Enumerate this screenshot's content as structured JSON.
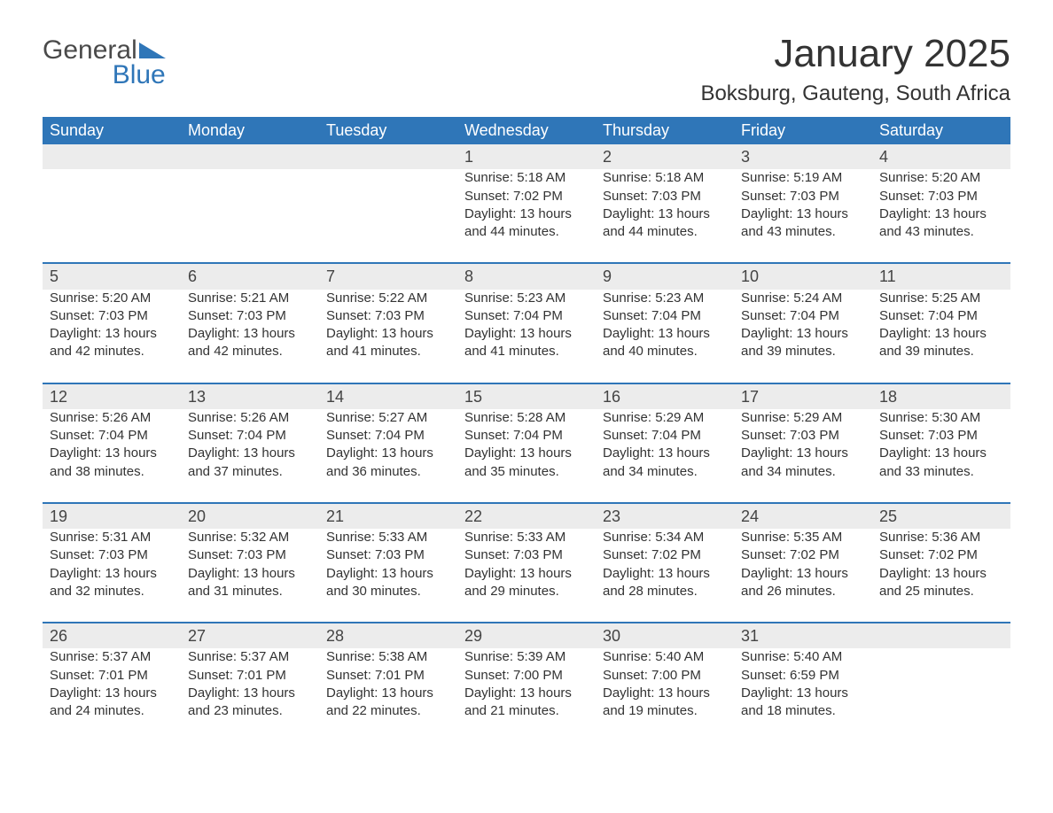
{
  "logo": {
    "word1": "General",
    "word2": "Blue"
  },
  "title": "January 2025",
  "location": "Boksburg, Gauteng, South Africa",
  "colors": {
    "header_bg": "#2f76b8",
    "header_text": "#ffffff",
    "daynum_bg": "#ececec",
    "row_border": "#2f76b8",
    "body_text": "#333333",
    "background": "#ffffff"
  },
  "fonts": {
    "title_size": 44,
    "location_size": 24,
    "header_size": 18,
    "cell_size": 15
  },
  "weekday_labels": [
    "Sunday",
    "Monday",
    "Tuesday",
    "Wednesday",
    "Thursday",
    "Friday",
    "Saturday"
  ],
  "weeks": [
    [
      null,
      null,
      null,
      {
        "day": "1",
        "sunrise": "Sunrise: 5:18 AM",
        "sunset": "Sunset: 7:02 PM",
        "daylight1": "Daylight: 13 hours",
        "daylight2": "and 44 minutes."
      },
      {
        "day": "2",
        "sunrise": "Sunrise: 5:18 AM",
        "sunset": "Sunset: 7:03 PM",
        "daylight1": "Daylight: 13 hours",
        "daylight2": "and 44 minutes."
      },
      {
        "day": "3",
        "sunrise": "Sunrise: 5:19 AM",
        "sunset": "Sunset: 7:03 PM",
        "daylight1": "Daylight: 13 hours",
        "daylight2": "and 43 minutes."
      },
      {
        "day": "4",
        "sunrise": "Sunrise: 5:20 AM",
        "sunset": "Sunset: 7:03 PM",
        "daylight1": "Daylight: 13 hours",
        "daylight2": "and 43 minutes."
      }
    ],
    [
      {
        "day": "5",
        "sunrise": "Sunrise: 5:20 AM",
        "sunset": "Sunset: 7:03 PM",
        "daylight1": "Daylight: 13 hours",
        "daylight2": "and 42 minutes."
      },
      {
        "day": "6",
        "sunrise": "Sunrise: 5:21 AM",
        "sunset": "Sunset: 7:03 PM",
        "daylight1": "Daylight: 13 hours",
        "daylight2": "and 42 minutes."
      },
      {
        "day": "7",
        "sunrise": "Sunrise: 5:22 AM",
        "sunset": "Sunset: 7:03 PM",
        "daylight1": "Daylight: 13 hours",
        "daylight2": "and 41 minutes."
      },
      {
        "day": "8",
        "sunrise": "Sunrise: 5:23 AM",
        "sunset": "Sunset: 7:04 PM",
        "daylight1": "Daylight: 13 hours",
        "daylight2": "and 41 minutes."
      },
      {
        "day": "9",
        "sunrise": "Sunrise: 5:23 AM",
        "sunset": "Sunset: 7:04 PM",
        "daylight1": "Daylight: 13 hours",
        "daylight2": "and 40 minutes."
      },
      {
        "day": "10",
        "sunrise": "Sunrise: 5:24 AM",
        "sunset": "Sunset: 7:04 PM",
        "daylight1": "Daylight: 13 hours",
        "daylight2": "and 39 minutes."
      },
      {
        "day": "11",
        "sunrise": "Sunrise: 5:25 AM",
        "sunset": "Sunset: 7:04 PM",
        "daylight1": "Daylight: 13 hours",
        "daylight2": "and 39 minutes."
      }
    ],
    [
      {
        "day": "12",
        "sunrise": "Sunrise: 5:26 AM",
        "sunset": "Sunset: 7:04 PM",
        "daylight1": "Daylight: 13 hours",
        "daylight2": "and 38 minutes."
      },
      {
        "day": "13",
        "sunrise": "Sunrise: 5:26 AM",
        "sunset": "Sunset: 7:04 PM",
        "daylight1": "Daylight: 13 hours",
        "daylight2": "and 37 minutes."
      },
      {
        "day": "14",
        "sunrise": "Sunrise: 5:27 AM",
        "sunset": "Sunset: 7:04 PM",
        "daylight1": "Daylight: 13 hours",
        "daylight2": "and 36 minutes."
      },
      {
        "day": "15",
        "sunrise": "Sunrise: 5:28 AM",
        "sunset": "Sunset: 7:04 PM",
        "daylight1": "Daylight: 13 hours",
        "daylight2": "and 35 minutes."
      },
      {
        "day": "16",
        "sunrise": "Sunrise: 5:29 AM",
        "sunset": "Sunset: 7:04 PM",
        "daylight1": "Daylight: 13 hours",
        "daylight2": "and 34 minutes."
      },
      {
        "day": "17",
        "sunrise": "Sunrise: 5:29 AM",
        "sunset": "Sunset: 7:03 PM",
        "daylight1": "Daylight: 13 hours",
        "daylight2": "and 34 minutes."
      },
      {
        "day": "18",
        "sunrise": "Sunrise: 5:30 AM",
        "sunset": "Sunset: 7:03 PM",
        "daylight1": "Daylight: 13 hours",
        "daylight2": "and 33 minutes."
      }
    ],
    [
      {
        "day": "19",
        "sunrise": "Sunrise: 5:31 AM",
        "sunset": "Sunset: 7:03 PM",
        "daylight1": "Daylight: 13 hours",
        "daylight2": "and 32 minutes."
      },
      {
        "day": "20",
        "sunrise": "Sunrise: 5:32 AM",
        "sunset": "Sunset: 7:03 PM",
        "daylight1": "Daylight: 13 hours",
        "daylight2": "and 31 minutes."
      },
      {
        "day": "21",
        "sunrise": "Sunrise: 5:33 AM",
        "sunset": "Sunset: 7:03 PM",
        "daylight1": "Daylight: 13 hours",
        "daylight2": "and 30 minutes."
      },
      {
        "day": "22",
        "sunrise": "Sunrise: 5:33 AM",
        "sunset": "Sunset: 7:03 PM",
        "daylight1": "Daylight: 13 hours",
        "daylight2": "and 29 minutes."
      },
      {
        "day": "23",
        "sunrise": "Sunrise: 5:34 AM",
        "sunset": "Sunset: 7:02 PM",
        "daylight1": "Daylight: 13 hours",
        "daylight2": "and 28 minutes."
      },
      {
        "day": "24",
        "sunrise": "Sunrise: 5:35 AM",
        "sunset": "Sunset: 7:02 PM",
        "daylight1": "Daylight: 13 hours",
        "daylight2": "and 26 minutes."
      },
      {
        "day": "25",
        "sunrise": "Sunrise: 5:36 AM",
        "sunset": "Sunset: 7:02 PM",
        "daylight1": "Daylight: 13 hours",
        "daylight2": "and 25 minutes."
      }
    ],
    [
      {
        "day": "26",
        "sunrise": "Sunrise: 5:37 AM",
        "sunset": "Sunset: 7:01 PM",
        "daylight1": "Daylight: 13 hours",
        "daylight2": "and 24 minutes."
      },
      {
        "day": "27",
        "sunrise": "Sunrise: 5:37 AM",
        "sunset": "Sunset: 7:01 PM",
        "daylight1": "Daylight: 13 hours",
        "daylight2": "and 23 minutes."
      },
      {
        "day": "28",
        "sunrise": "Sunrise: 5:38 AM",
        "sunset": "Sunset: 7:01 PM",
        "daylight1": "Daylight: 13 hours",
        "daylight2": "and 22 minutes."
      },
      {
        "day": "29",
        "sunrise": "Sunrise: 5:39 AM",
        "sunset": "Sunset: 7:00 PM",
        "daylight1": "Daylight: 13 hours",
        "daylight2": "and 21 minutes."
      },
      {
        "day": "30",
        "sunrise": "Sunrise: 5:40 AM",
        "sunset": "Sunset: 7:00 PM",
        "daylight1": "Daylight: 13 hours",
        "daylight2": "and 19 minutes."
      },
      {
        "day": "31",
        "sunrise": "Sunrise: 5:40 AM",
        "sunset": "Sunset: 6:59 PM",
        "daylight1": "Daylight: 13 hours",
        "daylight2": "and 18 minutes."
      },
      null
    ]
  ]
}
